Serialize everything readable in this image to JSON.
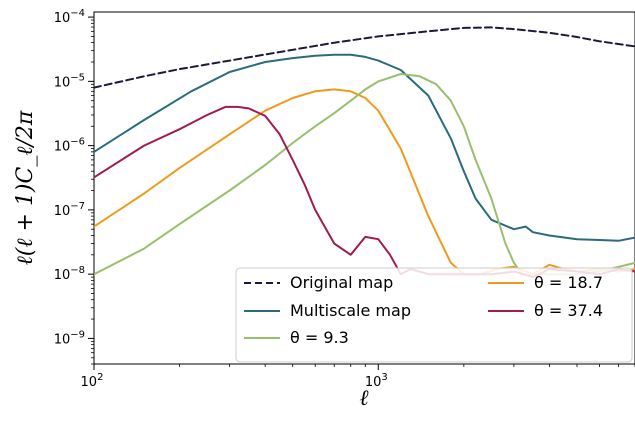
{
  "chart_data": {
    "type": "line",
    "xscale": "log",
    "yscale": "log",
    "xlim": [
      100,
      8000
    ],
    "ylim": [
      4e-10,
      0.00012
    ],
    "xlabel": "ℓ",
    "ylabel": "ℓ(ℓ + 1)C_ℓ/2π",
    "x_tick_labels": [
      {
        "value": 100,
        "base": "10",
        "exp": "2"
      },
      {
        "value": 1000,
        "base": "10",
        "exp": "3"
      }
    ],
    "y_tick_labels": [
      {
        "value": 1e-09,
        "base": "10",
        "exp": "−9"
      },
      {
        "value": 1e-08,
        "base": "10",
        "exp": "−8"
      },
      {
        "value": 1e-07,
        "base": "10",
        "exp": "−7"
      },
      {
        "value": 1e-06,
        "base": "10",
        "exp": "−6"
      },
      {
        "value": 1e-05,
        "base": "10",
        "exp": "−5"
      },
      {
        "value": 0.0001,
        "base": "10",
        "exp": "−4"
      }
    ],
    "legend_position": "lower-right",
    "series": [
      {
        "name": "Original map",
        "color": "#1a1a3a",
        "dash": "dashed",
        "x": [
          100,
          150,
          200,
          300,
          500,
          700,
          1000,
          1500,
          2000,
          2500,
          3000,
          4000,
          5000,
          6000,
          8000
        ],
        "y": [
          8e-06,
          1.2e-05,
          1.55e-05,
          2.1e-05,
          3.1e-05,
          4e-05,
          5e-05,
          6e-05,
          6.8e-05,
          6.9e-05,
          6.5e-05,
          5.7e-05,
          4.9e-05,
          4.2e-05,
          3.5e-05
        ]
      },
      {
        "name": " Multiscale map",
        "color": "#2a6b7c",
        "dash": "solid",
        "x": [
          100,
          150,
          220,
          300,
          400,
          500,
          600,
          700,
          800,
          900,
          1000,
          1200,
          1500,
          1800,
          2000,
          2200,
          2500,
          3000,
          3300,
          3500,
          4000,
          5000,
          6000,
          7000,
          8000
        ],
        "y": [
          8e-07,
          2.5e-06,
          7e-06,
          1.4e-05,
          2e-05,
          2.3e-05,
          2.5e-05,
          2.6e-05,
          2.6e-05,
          2.4e-05,
          2.1e-05,
          1.5e-05,
          6e-06,
          1.3e-06,
          4e-07,
          1.5e-07,
          7e-08,
          5e-08,
          5.5e-08,
          4.5e-08,
          4e-08,
          3.5e-08,
          3.4e-08,
          3.3e-08,
          3.7e-08
        ]
      },
      {
        "name": "θ = 18.7",
        "color": "#ee9a1c",
        "dash": "solid",
        "x": [
          100,
          150,
          200,
          300,
          400,
          500,
          600,
          700,
          800,
          900,
          1000,
          1200,
          1500,
          1800,
          2000,
          2300,
          2600,
          3000,
          3500,
          4000,
          4500,
          5000,
          6000,
          7000,
          8000
        ],
        "y": [
          5.5e-08,
          1.8e-07,
          4.5e-07,
          1.5e-06,
          3.5e-06,
          5.5e-06,
          7e-06,
          7.5e-06,
          7e-06,
          5.5e-06,
          3.5e-06,
          9e-07,
          8e-08,
          1.5e-08,
          1e-08,
          1e-08,
          1.2e-08,
          1.3e-08,
          1e-08,
          1.4e-08,
          1.2e-08,
          1.1e-08,
          1.2e-08,
          1.1e-08,
          1.2e-08
        ]
      },
      {
        "name": "θ = 9.3",
        "color": "#98bf6c",
        "dash": "solid",
        "x": [
          100,
          150,
          200,
          300,
          400,
          500,
          600,
          700,
          800,
          900,
          1000,
          1200,
          1400,
          1600,
          1800,
          2000,
          2200,
          2500,
          2800,
          3000,
          3200,
          3500,
          4000,
          5000,
          6000,
          7000,
          8000
        ],
        "y": [
          1e-08,
          2.5e-08,
          6e-08,
          2e-07,
          5e-07,
          1.1e-06,
          2e-06,
          3.2e-06,
          5e-06,
          7.5e-06,
          1e-05,
          1.3e-05,
          1.2e-05,
          9e-06,
          5e-06,
          2e-06,
          6e-07,
          1.5e-07,
          3e-08,
          1.5e-08,
          1e-08,
          1e-08,
          1e-08,
          1e-08,
          1.1e-08,
          1.3e-08,
          1.5e-08
        ]
      },
      {
        "name": "θ = 37.4",
        "color": "#a31a4f",
        "dash": "solid",
        "x": [
          100,
          150,
          200,
          250,
          290,
          320,
          350,
          400,
          450,
          500,
          550,
          600,
          700,
          800,
          900,
          1000,
          1100,
          1200,
          1300,
          1500,
          1800,
          2000,
          2500,
          3000,
          3500,
          4000,
          5000,
          6000,
          7000,
          8000
        ],
        "y": [
          3.2e-07,
          1e-06,
          1.8e-06,
          3e-06,
          4e-06,
          4e-06,
          3.8e-06,
          2.9e-06,
          1.5e-06,
          6e-07,
          2.5e-07,
          1e-07,
          3e-08,
          2e-08,
          3.8e-08,
          3.5e-08,
          2e-08,
          1e-08,
          1.2e-08,
          1e-08,
          1e-08,
          1e-08,
          1e-08,
          1.1e-08,
          9e-09,
          1.2e-08,
          1.1e-08,
          1e-08,
          1.2e-08,
          1.1e-08
        ]
      }
    ],
    "legend_order": [
      0,
      1,
      3,
      2,
      4
    ]
  }
}
